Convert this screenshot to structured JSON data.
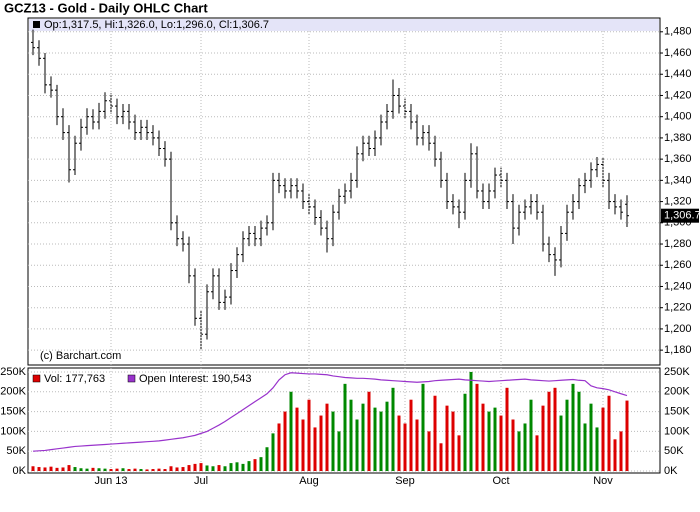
{
  "chart_data": [
    {
      "type": "ohlc",
      "title": "GCZ13 - Gold - Daily OHLC Chart",
      "header": "Op:1,317.5, Hi:1,326.0, Lo:1,296.0, Cl:1,306.7",
      "credit": "(c) Barchart.com",
      "last_label": "1,306.7",
      "color": "#000000",
      "open": [
        1470,
        1465,
        1455,
        1430,
        1425,
        1400,
        1385,
        1350,
        1375,
        1390,
        1400,
        1395,
        1405,
        1415,
        1410,
        1400,
        1405,
        1395,
        1385,
        1390,
        1385,
        1380,
        1370,
        1360,
        1300,
        1285,
        1280,
        1250,
        1210,
        1195,
        1235,
        1250,
        1225,
        1230,
        1255,
        1270,
        1285,
        1290,
        1285,
        1295,
        1300,
        1340,
        1335,
        1330,
        1335,
        1330,
        1320,
        1315,
        1305,
        1295,
        1285,
        1310,
        1325,
        1330,
        1340,
        1365,
        1375,
        1370,
        1380,
        1395,
        1405,
        1420,
        1410,
        1405,
        1395,
        1380,
        1385,
        1375,
        1360,
        1340,
        1320,
        1315,
        1310,
        1340,
        1365,
        1330,
        1320,
        1330,
        1345,
        1340,
        1320,
        1295,
        1310,
        1315,
        1320,
        1310,
        1280,
        1270,
        1265,
        1290,
        1310,
        1320,
        1335,
        1340,
        1350,
        1355,
        1340,
        1320,
        1315,
        1317.5
      ],
      "high": [
        1482,
        1472,
        1460,
        1438,
        1430,
        1408,
        1392,
        1382,
        1398,
        1408,
        1407,
        1413,
        1423,
        1422,
        1417,
        1412,
        1412,
        1402,
        1397,
        1397,
        1392,
        1387,
        1377,
        1367,
        1307,
        1292,
        1287,
        1257,
        1217,
        1242,
        1257,
        1257,
        1237,
        1262,
        1277,
        1292,
        1297,
        1297,
        1302,
        1307,
        1347,
        1347,
        1342,
        1342,
        1342,
        1337,
        1327,
        1322,
        1312,
        1302,
        1317,
        1332,
        1337,
        1347,
        1372,
        1382,
        1382,
        1387,
        1402,
        1412,
        1435,
        1427,
        1417,
        1412,
        1402,
        1392,
        1392,
        1382,
        1367,
        1347,
        1327,
        1322,
        1347,
        1375,
        1372,
        1337,
        1337,
        1352,
        1352,
        1347,
        1327,
        1317,
        1322,
        1327,
        1327,
        1317,
        1287,
        1277,
        1297,
        1317,
        1327,
        1342,
        1347,
        1357,
        1362,
        1362,
        1347,
        1327,
        1322,
        1326
      ],
      "low": [
        1458,
        1448,
        1422,
        1418,
        1392,
        1378,
        1338,
        1345,
        1368,
        1383,
        1388,
        1388,
        1398,
        1403,
        1393,
        1393,
        1388,
        1378,
        1378,
        1378,
        1373,
        1363,
        1353,
        1293,
        1278,
        1273,
        1243,
        1203,
        1180,
        1190,
        1228,
        1218,
        1218,
        1223,
        1248,
        1263,
        1278,
        1278,
        1278,
        1288,
        1293,
        1328,
        1323,
        1323,
        1323,
        1313,
        1308,
        1298,
        1288,
        1272,
        1278,
        1303,
        1318,
        1323,
        1333,
        1358,
        1363,
        1363,
        1373,
        1388,
        1398,
        1403,
        1398,
        1388,
        1373,
        1373,
        1368,
        1353,
        1333,
        1313,
        1308,
        1295,
        1303,
        1333,
        1323,
        1313,
        1313,
        1323,
        1333,
        1313,
        1280,
        1288,
        1303,
        1308,
        1303,
        1273,
        1263,
        1250,
        1258,
        1283,
        1303,
        1313,
        1328,
        1333,
        1343,
        1333,
        1313,
        1308,
        1303,
        1296
      ],
      "close": [
        1465,
        1455,
        1430,
        1425,
        1400,
        1385,
        1350,
        1375,
        1390,
        1400,
        1395,
        1405,
        1415,
        1410,
        1400,
        1405,
        1395,
        1385,
        1390,
        1385,
        1380,
        1370,
        1360,
        1300,
        1285,
        1280,
        1250,
        1210,
        1195,
        1235,
        1250,
        1225,
        1230,
        1255,
        1270,
        1285,
        1290,
        1285,
        1295,
        1300,
        1340,
        1335,
        1330,
        1335,
        1330,
        1320,
        1315,
        1305,
        1295,
        1285,
        1310,
        1325,
        1330,
        1340,
        1365,
        1375,
        1370,
        1380,
        1395,
        1405,
        1420,
        1410,
        1405,
        1395,
        1380,
        1385,
        1375,
        1360,
        1340,
        1320,
        1315,
        1310,
        1340,
        1365,
        1330,
        1320,
        1330,
        1345,
        1340,
        1320,
        1295,
        1310,
        1315,
        1320,
        1310,
        1280,
        1270,
        1265,
        1290,
        1310,
        1320,
        1335,
        1340,
        1350,
        1355,
        1340,
        1320,
        1315,
        1310,
        1306.7
      ],
      "ylim": [
        1166,
        1493
      ],
      "yticks": [
        {
          "value": 1180,
          "label": "1,180"
        },
        {
          "value": 1200,
          "label": "1,200"
        },
        {
          "value": 1220,
          "label": "1,220"
        },
        {
          "value": 1240,
          "label": "1,240"
        },
        {
          "value": 1260,
          "label": "1,260"
        },
        {
          "value": 1280,
          "label": "1,280"
        },
        {
          "value": 1300,
          "label": "1,300"
        },
        {
          "value": 1320,
          "label": "1,320"
        },
        {
          "value": 1340,
          "label": "1,340"
        },
        {
          "value": 1360,
          "label": "1,360"
        },
        {
          "value": 1380,
          "label": "1,380"
        },
        {
          "value": 1400,
          "label": "1,400"
        },
        {
          "value": 1420,
          "label": "1,420"
        },
        {
          "value": 1440,
          "label": "1,440"
        },
        {
          "value": 1460,
          "label": "1,460"
        },
        {
          "value": 1480,
          "label": "1,480"
        }
      ],
      "grid": true
    },
    {
      "type": "volume",
      "categories": [
        null,
        null,
        null,
        null,
        null,
        null,
        null,
        null,
        null,
        null,
        null,
        null,
        null,
        "Jun 13",
        null,
        null,
        null,
        null,
        null,
        null,
        null,
        null,
        null,
        null,
        null,
        null,
        null,
        null,
        "Jul",
        null,
        null,
        null,
        null,
        null,
        null,
        null,
        null,
        null,
        null,
        null,
        null,
        null,
        null,
        null,
        null,
        null,
        "Aug",
        null,
        null,
        null,
        null,
        null,
        null,
        null,
        null,
        null,
        null,
        null,
        null,
        null,
        null,
        null,
        "Sep",
        null,
        null,
        null,
        null,
        null,
        null,
        null,
        null,
        null,
        null,
        null,
        null,
        null,
        null,
        null,
        "Oct",
        null,
        null,
        null,
        null,
        null,
        null,
        null,
        null,
        null,
        null,
        null,
        null,
        null,
        null,
        null,
        null,
        "Nov",
        null,
        null,
        null,
        null
      ],
      "series": [
        {
          "name": "Vol: 177,763",
          "color": "#dd0000",
          "up_color": "#008800",
          "values": [
            12000,
            10000,
            9000,
            11000,
            8000,
            9000,
            15000,
            10000,
            7000,
            6000,
            8000,
            7000,
            6000,
            5000,
            6000,
            7000,
            5000,
            6000,
            5000,
            4000,
            5000,
            6000,
            5000,
            12000,
            9000,
            10000,
            15000,
            18000,
            20000,
            14000,
            12000,
            15000,
            12000,
            20000,
            22000,
            18000,
            25000,
            30000,
            35000,
            60000,
            95000,
            120000,
            150000,
            200000,
            160000,
            130000,
            180000,
            110000,
            140000,
            170000,
            150000,
            100000,
            220000,
            180000,
            130000,
            170000,
            200000,
            160000,
            150000,
            175000,
            210000,
            140000,
            120000,
            180000,
            130000,
            220000,
            100000,
            190000,
            70000,
            165000,
            150000,
            90000,
            195000,
            250000,
            220000,
            170000,
            150000,
            160000,
            140000,
            210000,
            130000,
            100000,
            120000,
            180000,
            90000,
            165000,
            200000,
            210000,
            140000,
            180000,
            220000,
            200000,
            120000,
            170000,
            110000,
            160000,
            190000,
            80000,
            100000,
            177763
          ]
        },
        {
          "name": "Open Interest: 190,543",
          "color": "#9933cc",
          "values": [
            50000,
            51000,
            52000,
            54000,
            56000,
            58000,
            60000,
            62000,
            63000,
            64000,
            65000,
            66000,
            67000,
            68000,
            69000,
            70000,
            71000,
            72000,
            73000,
            74000,
            75000,
            76000,
            78000,
            80000,
            82000,
            84000,
            87000,
            90000,
            95000,
            100000,
            108000,
            116000,
            125000,
            135000,
            145000,
            155000,
            165000,
            175000,
            185000,
            195000,
            210000,
            230000,
            243000,
            248000,
            247000,
            246000,
            245000,
            245000,
            244000,
            243000,
            240000,
            238000,
            236000,
            235000,
            234000,
            234000,
            233000,
            232000,
            230000,
            229000,
            228000,
            227000,
            226000,
            225000,
            224000,
            225000,
            226000,
            228000,
            229000,
            230000,
            231000,
            232000,
            230000,
            229000,
            228000,
            227000,
            226000,
            227000,
            228000,
            229000,
            230000,
            231000,
            232000,
            230000,
            229000,
            228000,
            227000,
            228000,
            229000,
            230000,
            231000,
            229000,
            228000,
            215000,
            210000,
            208000,
            205000,
            200000,
            195000,
            190543
          ]
        }
      ],
      "ylim": [
        -5000,
        260000
      ],
      "yticks": [
        {
          "value": 0,
          "label": "0K"
        },
        {
          "value": 50000,
          "label": "50K"
        },
        {
          "value": 100000,
          "label": "100K"
        },
        {
          "value": 150000,
          "label": "150K"
        },
        {
          "value": 200000,
          "label": "200K"
        },
        {
          "value": 250000,
          "label": "250K"
        }
      ],
      "grid": true
    }
  ]
}
